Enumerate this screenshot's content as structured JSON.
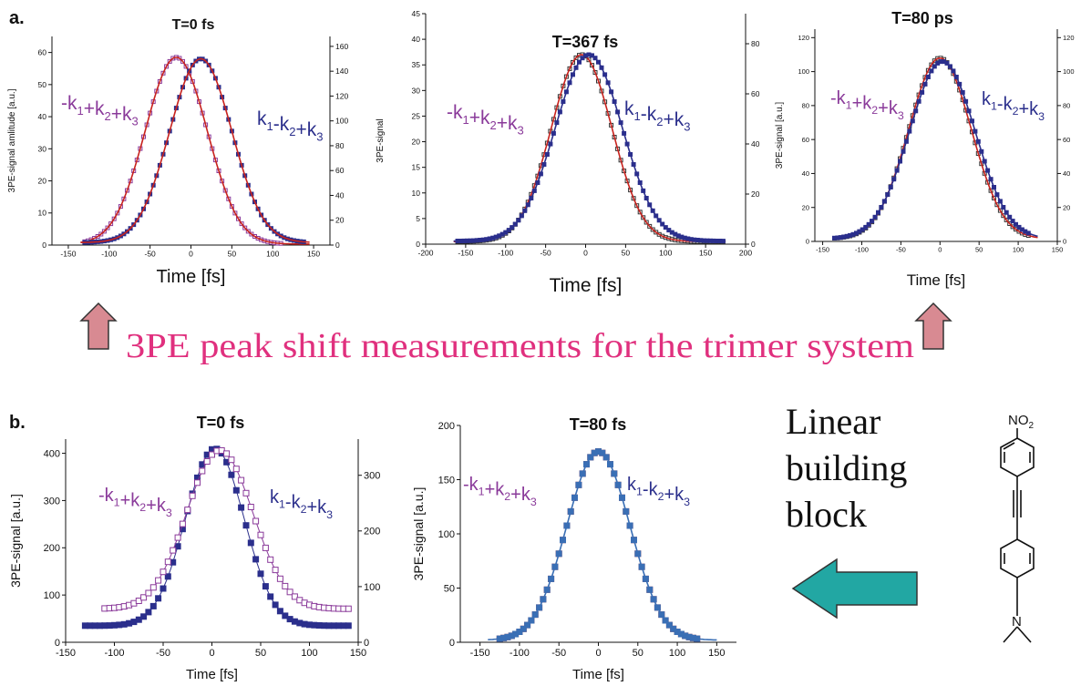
{
  "figure": {
    "label_a": "a.",
    "label_b": "b.",
    "caption": "3PE peak shift measurements for the trimer system",
    "linear_text": [
      "Linear",
      "building",
      "block"
    ],
    "molecule_labels": {
      "top": "NO",
      "top_sub": "2",
      "bottom": "N"
    },
    "colors": {
      "pink": "#e0307e",
      "purple": "#8a3a9a",
      "navy": "#2b2f8c",
      "red": "#c8231e",
      "arrow_fill": "#d88a92",
      "teal": "#22a7a3"
    }
  },
  "chart_data": [
    {
      "id": "a1",
      "type": "line",
      "title": "T=0 fs",
      "xlabel": "Time [fs]",
      "ylabel": "3PE-signal amlitude [a.u.]",
      "y2label": "3PE-signal",
      "xlim": [
        -170,
        170
      ],
      "ylim": [
        0,
        65
      ],
      "y2lim": [
        0,
        168
      ],
      "xticks": [
        -150,
        -100,
        -50,
        0,
        50,
        100,
        150
      ],
      "yticks": [
        0,
        10,
        20,
        30,
        40,
        50,
        60
      ],
      "y2ticks": [
        0,
        20,
        40,
        60,
        80,
        100,
        120,
        140,
        160
      ],
      "left_label": "-k1+k2+k3",
      "right_label": "k1-k2+k3",
      "series": [
        {
          "axis": "y",
          "marker": "square-open",
          "color": "#8a3a9a",
          "peak": 58.5,
          "center": -18,
          "sigma": 38,
          "baseline": 0.3,
          "x_range": [
            -130,
            110
          ],
          "fit_color": "#c8231e"
        },
        {
          "axis": "y2",
          "marker": "square-filled",
          "color": "#2b2f8c",
          "peak": 150,
          "center": 12,
          "sigma": 38,
          "baseline": 2,
          "x_range": [
            -130,
            140
          ],
          "fit_color": "#c8231e"
        }
      ]
    },
    {
      "id": "a2",
      "type": "line",
      "title": "T=367 fs",
      "xlabel": "Time [fs]",
      "ylabel": "",
      "y2label": "",
      "xlim": [
        -200,
        200
      ],
      "ylim": [
        0,
        45
      ],
      "y2lim": [
        0,
        92
      ],
      "xticks": [
        -200,
        -150,
        -100,
        -50,
        0,
        50,
        100,
        150,
        200
      ],
      "yticks": [
        0,
        5,
        10,
        15,
        20,
        25,
        30,
        35,
        40,
        45
      ],
      "y2ticks": [
        0,
        20,
        40,
        60,
        80
      ],
      "left_label": "-k1+k2+k3",
      "right_label": "k1-k2+k3",
      "series": [
        {
          "axis": "y",
          "marker": "square-open",
          "color": "#333333",
          "peak": 37,
          "center": -5,
          "sigma": 38,
          "baseline": 0.5,
          "x_range": [
            -160,
            175
          ],
          "fit_color": "#c8231e"
        },
        {
          "axis": "y",
          "marker": "square-filled",
          "color": "#2b2f8c",
          "peak": 37,
          "center": 4,
          "sigma": 42,
          "baseline": 0.6,
          "x_range": [
            -160,
            175
          ],
          "fit_color": "#2b2f8c"
        }
      ]
    },
    {
      "id": "a3",
      "type": "line",
      "title": "T=80 ps",
      "xlabel": "Time [fs]",
      "ylabel": "3PE-signal [a.u.]",
      "y2label": "",
      "xlim": [
        -160,
        150
      ],
      "ylim": [
        0,
        125
      ],
      "y2lim": [
        0,
        125
      ],
      "xticks": [
        -150,
        -100,
        -50,
        0,
        50,
        100,
        150
      ],
      "yticks": [
        0,
        20,
        40,
        60,
        80,
        100,
        120
      ],
      "y2ticks": [
        0,
        20,
        40,
        60,
        80,
        100,
        120
      ],
      "left_label": "-k1+k2+k3",
      "right_label": "k1-k2+k3",
      "series": [
        {
          "axis": "y",
          "marker": "square-open",
          "color": "#333333",
          "peak": 108,
          "center": 0,
          "sigma": 40,
          "baseline": 1.5,
          "x_range": [
            -135,
            115
          ],
          "fit_color": "#c8231e"
        },
        {
          "axis": "y",
          "marker": "square-filled",
          "color": "#2b2f8c",
          "peak": 106,
          "center": 3,
          "sigma": 42,
          "baseline": 1.5,
          "x_range": [
            -135,
            115
          ],
          "fit_color": "#2b2f8c"
        }
      ]
    },
    {
      "id": "b1",
      "type": "line",
      "title": "T=0 fs",
      "xlabel": "Time [fs]",
      "ylabel": "3PE-signal [a.u.]",
      "y2label": "",
      "xlim": [
        -150,
        150
      ],
      "ylim": [
        0,
        430
      ],
      "y2lim": [
        0,
        365
      ],
      "xticks": [
        -150,
        -100,
        -50,
        0,
        50,
        100,
        150
      ],
      "yticks": [
        0,
        100,
        200,
        300,
        400
      ],
      "y2ticks": [
        0,
        100,
        200,
        300
      ],
      "left_label": "-k1+k2+k3",
      "right_label": "k1-k2+k3",
      "series": [
        {
          "axis": "y",
          "marker": "square-filled",
          "color": "#2b2f8c",
          "peak": 410,
          "center": 3,
          "sigma": 30,
          "baseline": 35,
          "x_range": [
            -130,
            140
          ],
          "fit_color": null
        },
        {
          "axis": "y2",
          "marker": "square-open",
          "color": "#8a3a9a",
          "peak": 345,
          "center": 8,
          "sigma": 34,
          "baseline": 60,
          "x_range": [
            -110,
            140
          ],
          "fit_color": null
        }
      ]
    },
    {
      "id": "b2",
      "type": "line",
      "title": "T=80 fs",
      "xlabel": "Time [fs]",
      "ylabel": "3PE-signal [a.u.]",
      "y2label": "",
      "xlim": [
        -175,
        175
      ],
      "ylim": [
        0,
        200
      ],
      "y2lim": [
        0,
        200
      ],
      "xticks": [
        -150,
        -100,
        -50,
        0,
        50,
        100,
        150
      ],
      "yticks": [
        0,
        50,
        100,
        150,
        200
      ],
      "y2ticks": [],
      "left_label": "-k1+k2+k3",
      "right_label": "k1-k2+k3",
      "series": [
        {
          "axis": "y",
          "marker": "square-open",
          "color": "#c8231e",
          "peak": 176,
          "center": 0,
          "sigma": 40,
          "baseline": 2,
          "x_range": [
            -125,
            125
          ],
          "fit_color": null
        },
        {
          "axis": "y",
          "marker": "square-filled",
          "color": "#3a6fb5",
          "peak": 176,
          "center": 0,
          "sigma": 40,
          "baseline": 2,
          "x_range": [
            -125,
            125
          ],
          "fit_color": "#3a6fb5"
        }
      ]
    }
  ]
}
